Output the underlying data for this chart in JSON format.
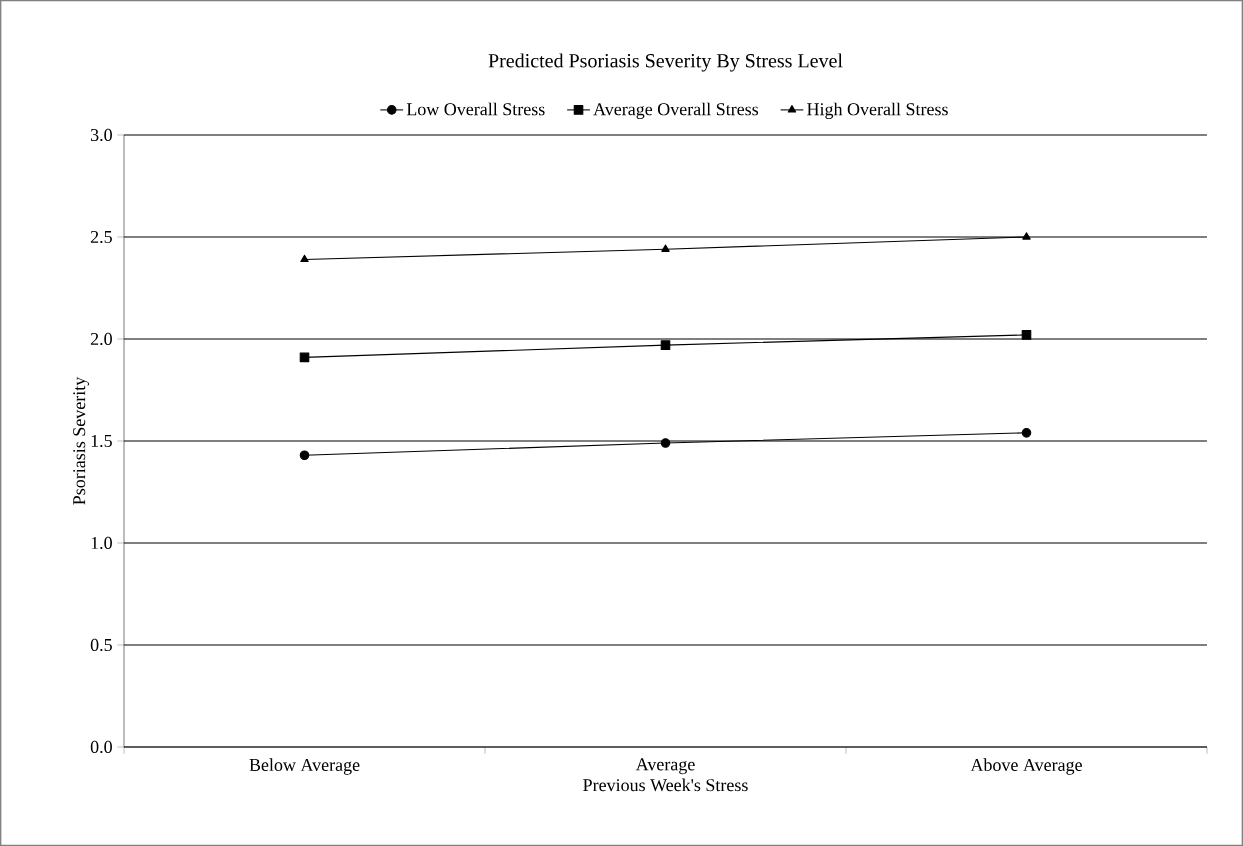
{
  "chart_data": {
    "type": "line",
    "title": "Predicted Psoriasis Severity By Stress Level",
    "xlabel": "Previous Week's Stress",
    "ylabel": "Psoriasis Severity",
    "categories": [
      "Below Average",
      "Average",
      "Above Average"
    ],
    "series": [
      {
        "name": "Low Overall Stress",
        "color": "#000000",
        "marker": "circle",
        "values": [
          1.43,
          1.49,
          1.54
        ]
      },
      {
        "name": "Average Overall Stress",
        "color": "#000000",
        "marker": "square",
        "values": [
          1.91,
          1.97,
          2.02
        ]
      },
      {
        "name": "High Overall Stress",
        "color": "#000000",
        "marker": "triangle",
        "values": [
          2.39,
          2.44,
          2.5
        ]
      }
    ],
    "ylim": [
      0,
      3
    ],
    "yticks": [
      {
        "value": 0,
        "label": "0.0"
      },
      {
        "value": 0.5,
        "label": "0.5"
      },
      {
        "value": 1,
        "label": "1.0"
      },
      {
        "value": 1.5,
        "label": "1.5"
      },
      {
        "value": 2,
        "label": "2.0"
      },
      {
        "value": 2.5,
        "label": "2.5"
      },
      {
        "value": 3,
        "label": "3.0"
      }
    ],
    "grid": "y",
    "legend": "top",
    "line_style": "solid"
  }
}
